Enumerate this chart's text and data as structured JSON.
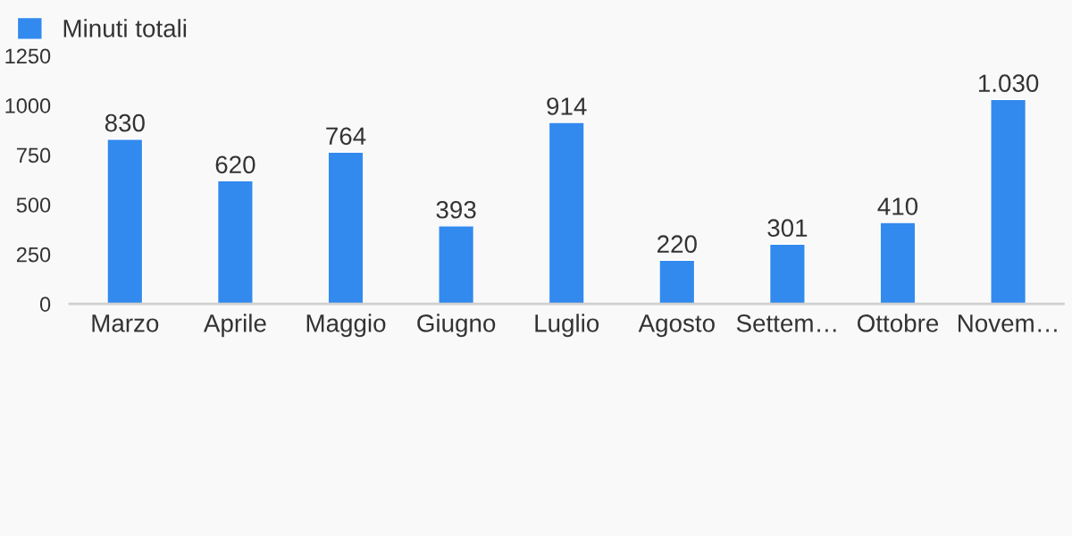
{
  "chart_data": {
    "type": "bar",
    "categories": [
      "Marzo",
      "Aprile",
      "Maggio",
      "Giugno",
      "Luglio",
      "Agosto",
      "Settem…",
      "Ottobre",
      "Novem…"
    ],
    "series": [
      {
        "name": "Minuti totali",
        "color": "#328aee",
        "values": [
          830,
          620,
          764,
          393,
          914,
          220,
          301,
          410,
          1030
        ],
        "value_labels": [
          "830",
          "620",
          "764",
          "393",
          "914",
          "220",
          "301",
          "410",
          "1.030"
        ]
      }
    ],
    "ylim": [
      0,
      1250
    ],
    "yticks": [
      0,
      250,
      500,
      750,
      1000,
      1250
    ],
    "grid": false,
    "legend": "top left"
  }
}
